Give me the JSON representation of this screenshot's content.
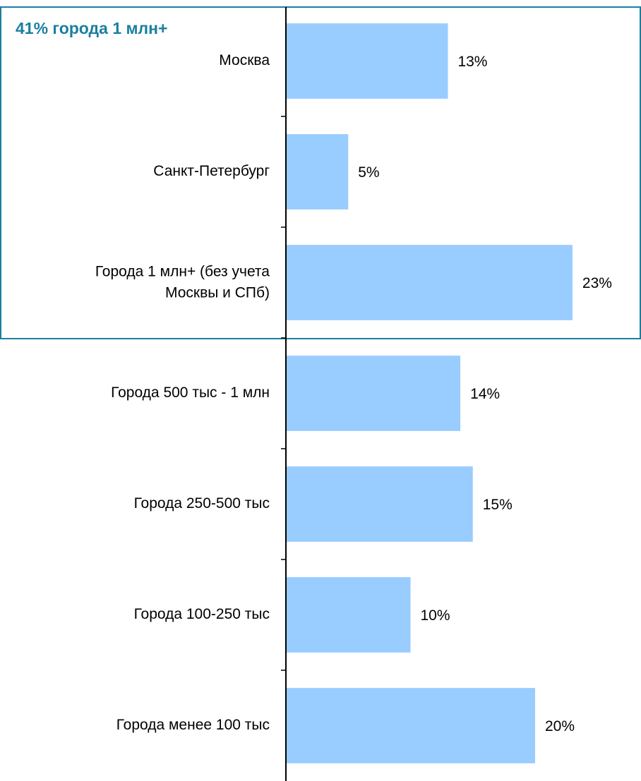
{
  "chart_data": {
    "type": "bar",
    "orientation": "horizontal",
    "annotation": "41%  города 1 млн+",
    "categories": [
      "Москва",
      "Санкт-Петербург",
      "Города 1 млн+ (без учета\nМосквы и СПб)",
      "Города  500 тыс - 1 млн",
      "Города 250-500 тыс",
      "Города 100-250 тыс",
      "Города менее 100 тыс"
    ],
    "values": [
      13,
      5,
      23,
      14,
      15,
      10,
      20
    ],
    "value_labels": [
      "13%",
      "5%",
      "23%",
      "14%",
      "15%",
      "10%",
      "20%"
    ],
    "color": "#99ccff",
    "xlim": [
      0,
      28.5
    ]
  }
}
